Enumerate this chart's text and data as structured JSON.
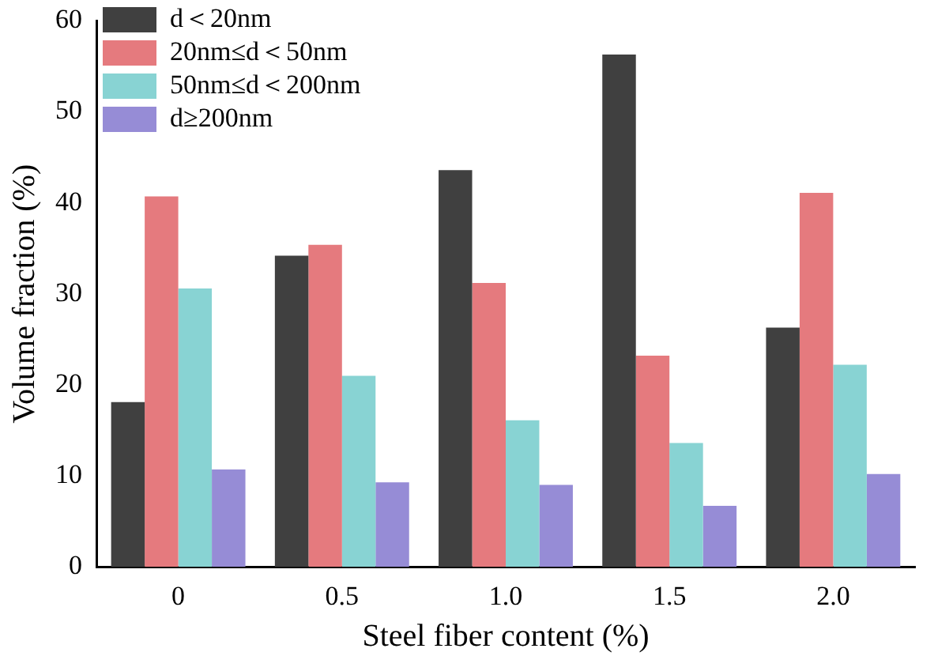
{
  "chart_data": {
    "type": "bar",
    "xlabel": "Steel fiber content (%)",
    "ylabel": "Volume fraction (%)",
    "categories": [
      "0",
      "0.5",
      "1.0",
      "1.5",
      "2.0"
    ],
    "series": [
      {
        "name": "d＜20nm",
        "color": "#404040",
        "values": [
          18.1,
          34.2,
          43.6,
          56.3,
          26.3
        ]
      },
      {
        "name": "20nm≤d＜50nm",
        "color": "#e57a7e",
        "values": [
          40.7,
          35.4,
          31.2,
          23.2,
          41.1
        ]
      },
      {
        "name": "50nm≤d＜200nm",
        "color": "#88d3d3",
        "values": [
          30.6,
          21.0,
          16.1,
          13.6,
          22.2
        ]
      },
      {
        "name": "d≥200nm",
        "color": "#968cd6",
        "values": [
          10.7,
          9.3,
          9.0,
          6.7,
          10.2
        ]
      }
    ],
    "ylim": [
      0,
      60
    ],
    "yticks": [
      0,
      10,
      20,
      30,
      40,
      50,
      60
    ],
    "grid": false,
    "legend": "top left"
  }
}
